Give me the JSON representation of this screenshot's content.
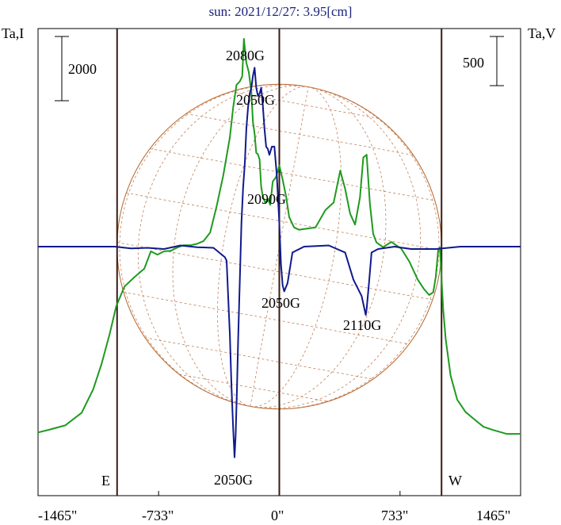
{
  "chart_data": {
    "type": "line",
    "title": "sun: 2021/12/27: 3.95[cm]",
    "ylabel_left": "Ta,I",
    "ylabel_right": "Ta,V",
    "scale_left": "2000",
    "scale_right": "500",
    "xlim": [
      -1465,
      1465
    ],
    "x_ticks": [
      {
        "value": -1465,
        "label": "-1465\""
      },
      {
        "value": -733,
        "label": "-733\""
      },
      {
        "value": 0,
        "label": "0\""
      },
      {
        "value": 733,
        "label": "733\""
      },
      {
        "value": 1465,
        "label": "1465\""
      }
    ],
    "limb_markers": [
      {
        "value": -985,
        "label": "E"
      },
      {
        "value": 0,
        "label": ""
      },
      {
        "value": 985,
        "label": "W"
      }
    ],
    "grid": false,
    "series": [
      {
        "color": "#1f9a1f",
        "values_desc": "I",
        "x": [
          -1465,
          -1400,
          -1300,
          -1200,
          -1130,
          -1080,
          -1030,
          -990,
          -940,
          -880,
          -820,
          -780,
          -740,
          -700,
          -660,
          -620,
          -580,
          -540,
          -500,
          -460,
          -420,
          -380,
          -340,
          -300,
          -280,
          -260,
          -240,
          -225,
          -215,
          -200,
          -185,
          -170,
          -160,
          -150,
          -140,
          -130,
          -120,
          -110,
          -100,
          -85,
          -70,
          -55,
          -40,
          -20,
          0,
          20,
          40,
          60,
          90,
          120,
          160,
          220,
          280,
          330,
          370,
          400,
          430,
          460,
          490,
          510,
          530,
          550,
          570,
          590,
          630,
          680,
          740,
          790,
          840,
          880,
          910,
          935,
          950,
          965,
          975,
          985,
          995,
          1010,
          1040,
          1080,
          1130,
          1180,
          1240,
          1300,
          1380,
          1465
        ],
        "values": [
          570,
          625,
          720,
          990,
          1490,
          2020,
          2670,
          3260,
          3680,
          3880,
          4060,
          4430,
          4360,
          4430,
          4440,
          4510,
          4560,
          4560,
          4590,
          4650,
          4830,
          5400,
          6050,
          6860,
          7500,
          7980,
          8050,
          8160,
          8960,
          8450,
          8250,
          7830,
          7190,
          6940,
          6530,
          6500,
          6390,
          5810,
          5600,
          5460,
          5550,
          5420,
          5920,
          6010,
          6260,
          5960,
          5620,
          5160,
          4940,
          4890,
          4910,
          4940,
          5310,
          5470,
          6150,
          5760,
          5230,
          5000,
          5580,
          6430,
          6490,
          5450,
          4800,
          4620,
          4520,
          4630,
          4490,
          4210,
          3830,
          3620,
          3500,
          3560,
          3890,
          4480,
          4510,
          3860,
          3200,
          2570,
          1780,
          1270,
          1010,
          860,
          690,
          620,
          540,
          540
        ]
      },
      {
        "color": "#101a8c",
        "values_desc": "V",
        "x": [
          -1465,
          -1200,
          -1000,
          -900,
          -800,
          -700,
          -600,
          -500,
          -400,
          -330,
          -320,
          -305,
          -300,
          -290,
          -280,
          -272,
          -265,
          -257,
          -250,
          -240,
          -230,
          -220,
          -210,
          -200,
          -190,
          -180,
          -170,
          -160,
          -150,
          -140,
          -130,
          -120,
          -110,
          -100,
          -90,
          -80,
          -70,
          -60,
          -45,
          -30,
          -15,
          0,
          10,
          20,
          30,
          50,
          80,
          150,
          300,
          400,
          450,
          500,
          520,
          525,
          530,
          545,
          560,
          600,
          700,
          800,
          950,
          1100,
          1465
        ],
        "values": [
          0,
          0,
          0,
          -15,
          -10,
          -20,
          10,
          -5,
          -10,
          -90,
          -120,
          -600,
          -750,
          -1200,
          -1550,
          -1790,
          -1600,
          -1200,
          -800,
          -300,
          200,
          500,
          700,
          1000,
          1180,
          1300,
          1350,
          1450,
          1520,
          1350,
          1280,
          1300,
          1350,
          1200,
          1000,
          850,
          830,
          780,
          850,
          850,
          600,
          200,
          -150,
          -330,
          -380,
          -310,
          -50,
          0,
          10,
          -50,
          -280,
          -420,
          -550,
          -580,
          -530,
          -300,
          -50,
          -20,
          0,
          -20,
          -20,
          0,
          0
        ]
      }
    ],
    "labels": [
      {
        "text": "2080G"
      },
      {
        "text": "2050G"
      },
      {
        "text": "2090G"
      },
      {
        "text": "2050G"
      },
      {
        "text": "2110G"
      },
      {
        "text": "2050G"
      }
    ]
  }
}
